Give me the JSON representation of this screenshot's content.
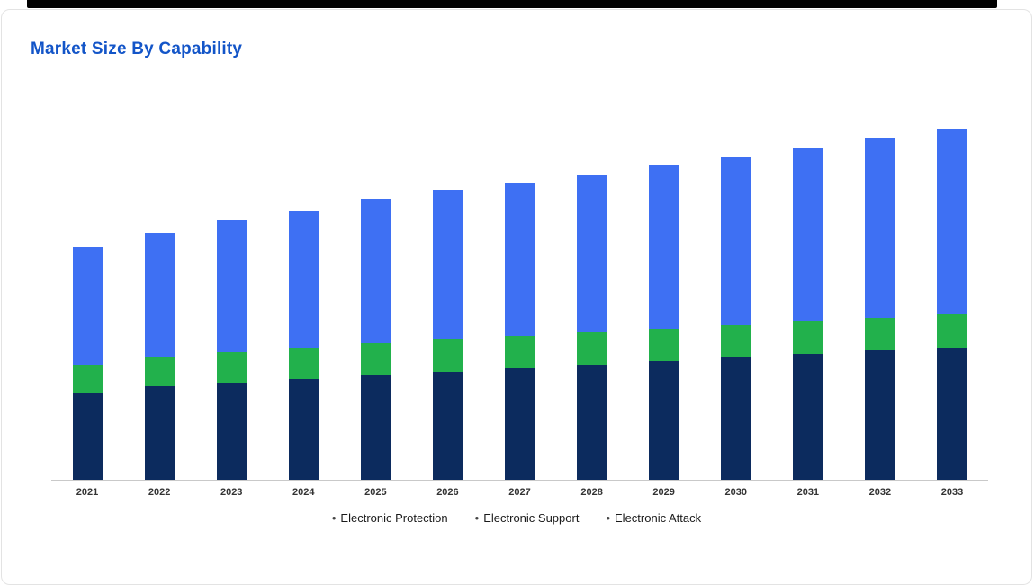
{
  "card": {
    "title": "Market Size By Capability"
  },
  "legend": {
    "bullet": "•"
  },
  "colors": {
    "title": "#1355c8",
    "electronic_protection": "#0c2b5e",
    "electronic_support": "#22b14c",
    "electronic_attack": "#3e70f3",
    "axis_line": "#c9c9c9"
  },
  "chart_data": {
    "type": "bar",
    "stacked": true,
    "title": "Market Size By Capability",
    "categories": [
      "2021",
      "2022",
      "2023",
      "2024",
      "2025",
      "2026",
      "2027",
      "2028",
      "2029",
      "2030",
      "2031",
      "2032",
      "2033"
    ],
    "series": [
      {
        "name": "Electronic Protection",
        "color": "#0c2b5e",
        "values": [
          4.8,
          5.2,
          5.4,
          5.6,
          5.8,
          6.0,
          6.2,
          6.4,
          6.6,
          6.8,
          7.0,
          7.2,
          7.3
        ]
      },
      {
        "name": "Electronic Support",
        "color": "#22b14c",
        "values": [
          1.6,
          1.6,
          1.7,
          1.7,
          1.8,
          1.8,
          1.8,
          1.8,
          1.8,
          1.8,
          1.8,
          1.8,
          1.9
        ]
      },
      {
        "name": "Electronic Attack",
        "color": "#3e70f3",
        "values": [
          6.5,
          6.9,
          7.3,
          7.6,
          8.0,
          8.3,
          8.5,
          8.7,
          9.1,
          9.3,
          9.6,
          10.0,
          10.3
        ]
      }
    ],
    "totals": [
      12.9,
      13.7,
      14.4,
      14.9,
      15.6,
      16.1,
      16.5,
      16.9,
      17.5,
      17.9,
      18.4,
      19.0,
      19.5
    ],
    "xlabel": "",
    "ylabel": "",
    "ylim": [
      0,
      20
    ],
    "grid": false,
    "y_axis_labels_visible": false,
    "legend_position": "bottom"
  }
}
